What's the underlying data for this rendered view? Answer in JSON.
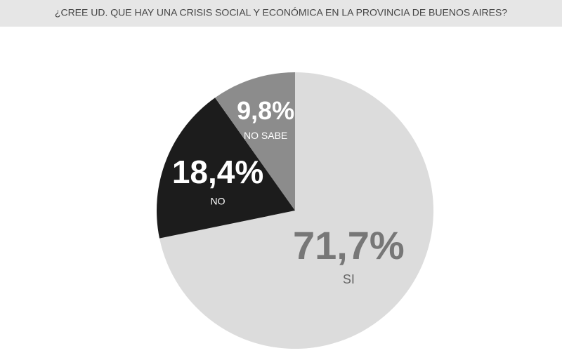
{
  "chart_data": {
    "type": "pie",
    "title": "¿CREE UD. QUE HAY UNA CRISIS SOCIAL Y ECONÓMICA EN LA PROVINCIA DE BUENOS AIRES?",
    "categories": [
      "SI",
      "NO",
      "NO SABE"
    ],
    "values": [
      71.7,
      18.4,
      9.8
    ],
    "value_labels": [
      "71,7%",
      "18,4%",
      "9,8%"
    ],
    "colors": [
      "#dcdcdc",
      "#1c1c1c",
      "#8c8c8c"
    ]
  }
}
